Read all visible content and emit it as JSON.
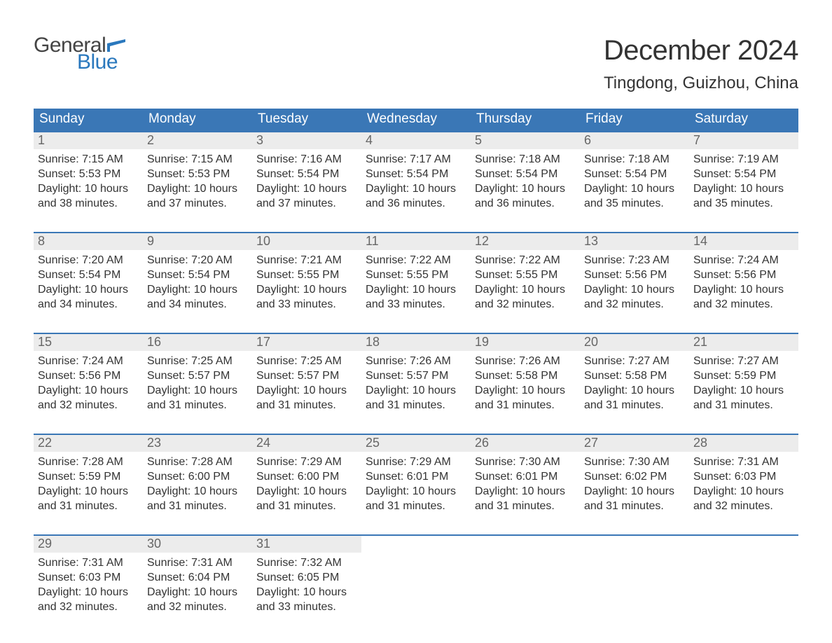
{
  "logo": {
    "text1": "General",
    "text2": "Blue",
    "flag_color": "#2a78bd",
    "text1_color": "#444444",
    "text2_color": "#2a78bd"
  },
  "title": "December 2024",
  "subtitle": "Tingdong, Guizhou, China",
  "colors": {
    "header_bg": "#3a77b6",
    "header_text": "#ffffff",
    "daynum_bg": "#ececec",
    "daynum_text": "#666666",
    "body_text": "#333333",
    "row_border": "#3a77b6",
    "page_bg": "#ffffff"
  },
  "typography": {
    "title_fontsize": 40,
    "subtitle_fontsize": 24,
    "dow_fontsize": 19,
    "daynum_fontsize": 18,
    "body_fontsize": 16,
    "font_family": "Arial"
  },
  "days_of_week": [
    "Sunday",
    "Monday",
    "Tuesday",
    "Wednesday",
    "Thursday",
    "Friday",
    "Saturday"
  ],
  "weeks": [
    [
      {
        "num": "1",
        "sunrise": "Sunrise: 7:15 AM",
        "sunset": "Sunset: 5:53 PM",
        "dl1": "Daylight: 10 hours",
        "dl2": "and 38 minutes."
      },
      {
        "num": "2",
        "sunrise": "Sunrise: 7:15 AM",
        "sunset": "Sunset: 5:53 PM",
        "dl1": "Daylight: 10 hours",
        "dl2": "and 37 minutes."
      },
      {
        "num": "3",
        "sunrise": "Sunrise: 7:16 AM",
        "sunset": "Sunset: 5:54 PM",
        "dl1": "Daylight: 10 hours",
        "dl2": "and 37 minutes."
      },
      {
        "num": "4",
        "sunrise": "Sunrise: 7:17 AM",
        "sunset": "Sunset: 5:54 PM",
        "dl1": "Daylight: 10 hours",
        "dl2": "and 36 minutes."
      },
      {
        "num": "5",
        "sunrise": "Sunrise: 7:18 AM",
        "sunset": "Sunset: 5:54 PM",
        "dl1": "Daylight: 10 hours",
        "dl2": "and 36 minutes."
      },
      {
        "num": "6",
        "sunrise": "Sunrise: 7:18 AM",
        "sunset": "Sunset: 5:54 PM",
        "dl1": "Daylight: 10 hours",
        "dl2": "and 35 minutes."
      },
      {
        "num": "7",
        "sunrise": "Sunrise: 7:19 AM",
        "sunset": "Sunset: 5:54 PM",
        "dl1": "Daylight: 10 hours",
        "dl2": "and 35 minutes."
      }
    ],
    [
      {
        "num": "8",
        "sunrise": "Sunrise: 7:20 AM",
        "sunset": "Sunset: 5:54 PM",
        "dl1": "Daylight: 10 hours",
        "dl2": "and 34 minutes."
      },
      {
        "num": "9",
        "sunrise": "Sunrise: 7:20 AM",
        "sunset": "Sunset: 5:54 PM",
        "dl1": "Daylight: 10 hours",
        "dl2": "and 34 minutes."
      },
      {
        "num": "10",
        "sunrise": "Sunrise: 7:21 AM",
        "sunset": "Sunset: 5:55 PM",
        "dl1": "Daylight: 10 hours",
        "dl2": "and 33 minutes."
      },
      {
        "num": "11",
        "sunrise": "Sunrise: 7:22 AM",
        "sunset": "Sunset: 5:55 PM",
        "dl1": "Daylight: 10 hours",
        "dl2": "and 33 minutes."
      },
      {
        "num": "12",
        "sunrise": "Sunrise: 7:22 AM",
        "sunset": "Sunset: 5:55 PM",
        "dl1": "Daylight: 10 hours",
        "dl2": "and 32 minutes."
      },
      {
        "num": "13",
        "sunrise": "Sunrise: 7:23 AM",
        "sunset": "Sunset: 5:56 PM",
        "dl1": "Daylight: 10 hours",
        "dl2": "and 32 minutes."
      },
      {
        "num": "14",
        "sunrise": "Sunrise: 7:24 AM",
        "sunset": "Sunset: 5:56 PM",
        "dl1": "Daylight: 10 hours",
        "dl2": "and 32 minutes."
      }
    ],
    [
      {
        "num": "15",
        "sunrise": "Sunrise: 7:24 AM",
        "sunset": "Sunset: 5:56 PM",
        "dl1": "Daylight: 10 hours",
        "dl2": "and 32 minutes."
      },
      {
        "num": "16",
        "sunrise": "Sunrise: 7:25 AM",
        "sunset": "Sunset: 5:57 PM",
        "dl1": "Daylight: 10 hours",
        "dl2": "and 31 minutes."
      },
      {
        "num": "17",
        "sunrise": "Sunrise: 7:25 AM",
        "sunset": "Sunset: 5:57 PM",
        "dl1": "Daylight: 10 hours",
        "dl2": "and 31 minutes."
      },
      {
        "num": "18",
        "sunrise": "Sunrise: 7:26 AM",
        "sunset": "Sunset: 5:57 PM",
        "dl1": "Daylight: 10 hours",
        "dl2": "and 31 minutes."
      },
      {
        "num": "19",
        "sunrise": "Sunrise: 7:26 AM",
        "sunset": "Sunset: 5:58 PM",
        "dl1": "Daylight: 10 hours",
        "dl2": "and 31 minutes."
      },
      {
        "num": "20",
        "sunrise": "Sunrise: 7:27 AM",
        "sunset": "Sunset: 5:58 PM",
        "dl1": "Daylight: 10 hours",
        "dl2": "and 31 minutes."
      },
      {
        "num": "21",
        "sunrise": "Sunrise: 7:27 AM",
        "sunset": "Sunset: 5:59 PM",
        "dl1": "Daylight: 10 hours",
        "dl2": "and 31 minutes."
      }
    ],
    [
      {
        "num": "22",
        "sunrise": "Sunrise: 7:28 AM",
        "sunset": "Sunset: 5:59 PM",
        "dl1": "Daylight: 10 hours",
        "dl2": "and 31 minutes."
      },
      {
        "num": "23",
        "sunrise": "Sunrise: 7:28 AM",
        "sunset": "Sunset: 6:00 PM",
        "dl1": "Daylight: 10 hours",
        "dl2": "and 31 minutes."
      },
      {
        "num": "24",
        "sunrise": "Sunrise: 7:29 AM",
        "sunset": "Sunset: 6:00 PM",
        "dl1": "Daylight: 10 hours",
        "dl2": "and 31 minutes."
      },
      {
        "num": "25",
        "sunrise": "Sunrise: 7:29 AM",
        "sunset": "Sunset: 6:01 PM",
        "dl1": "Daylight: 10 hours",
        "dl2": "and 31 minutes."
      },
      {
        "num": "26",
        "sunrise": "Sunrise: 7:30 AM",
        "sunset": "Sunset: 6:01 PM",
        "dl1": "Daylight: 10 hours",
        "dl2": "and 31 minutes."
      },
      {
        "num": "27",
        "sunrise": "Sunrise: 7:30 AM",
        "sunset": "Sunset: 6:02 PM",
        "dl1": "Daylight: 10 hours",
        "dl2": "and 31 minutes."
      },
      {
        "num": "28",
        "sunrise": "Sunrise: 7:31 AM",
        "sunset": "Sunset: 6:03 PM",
        "dl1": "Daylight: 10 hours",
        "dl2": "and 32 minutes."
      }
    ],
    [
      {
        "num": "29",
        "sunrise": "Sunrise: 7:31 AM",
        "sunset": "Sunset: 6:03 PM",
        "dl1": "Daylight: 10 hours",
        "dl2": "and 32 minutes."
      },
      {
        "num": "30",
        "sunrise": "Sunrise: 7:31 AM",
        "sunset": "Sunset: 6:04 PM",
        "dl1": "Daylight: 10 hours",
        "dl2": "and 32 minutes."
      },
      {
        "num": "31",
        "sunrise": "Sunrise: 7:32 AM",
        "sunset": "Sunset: 6:05 PM",
        "dl1": "Daylight: 10 hours",
        "dl2": "and 33 minutes."
      },
      {
        "empty": true
      },
      {
        "empty": true
      },
      {
        "empty": true
      },
      {
        "empty": true
      }
    ]
  ]
}
